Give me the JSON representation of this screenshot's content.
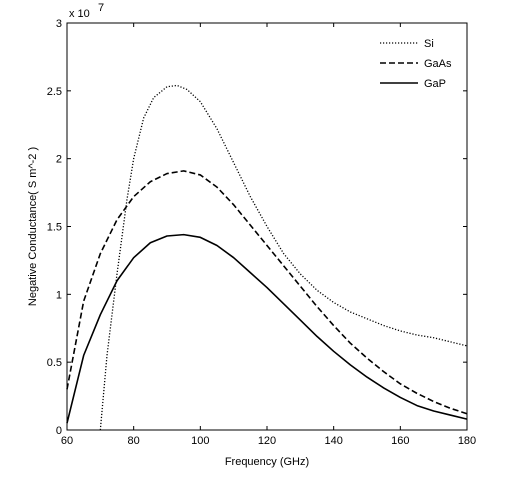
{
  "chart_data": {
    "type": "line",
    "title": "",
    "xlabel": "Frequency (GHz)",
    "ylabel": "Negative Conductance( S m^-2 )",
    "y_multiplier_label": "x 10",
    "y_multiplier_exponent": "7",
    "xlim": [
      60,
      180
    ],
    "ylim": [
      0,
      3
    ],
    "xticks": [
      "60",
      "80",
      "100",
      "120",
      "140",
      "160",
      "180"
    ],
    "yticks": [
      "0",
      "0.5",
      "1",
      "1.5",
      "2",
      "2.5",
      "3"
    ],
    "grid": false,
    "legend_position": "top-right",
    "x": [
      60,
      65,
      70,
      75,
      80,
      85,
      90,
      95,
      100,
      105,
      110,
      115,
      120,
      125,
      130,
      135,
      140,
      145,
      150,
      155,
      160,
      165,
      170,
      175,
      180
    ],
    "series": [
      {
        "name": "Si",
        "style": "dotted",
        "color": "#000000",
        "x": [
          70,
          72,
          75,
          78,
          80,
          83,
          86,
          90,
          93,
          96,
          100,
          105,
          110,
          115,
          120,
          125,
          130,
          135,
          140,
          145,
          150,
          155,
          160,
          165,
          170,
          175,
          180
        ],
        "values": [
          0.0,
          0.55,
          1.15,
          1.7,
          2.0,
          2.3,
          2.45,
          2.53,
          2.54,
          2.51,
          2.42,
          2.22,
          1.97,
          1.72,
          1.5,
          1.3,
          1.15,
          1.03,
          0.94,
          0.87,
          0.82,
          0.77,
          0.73,
          0.7,
          0.68,
          0.65,
          0.62
        ]
      },
      {
        "name": "GaAs",
        "style": "dashed",
        "color": "#000000",
        "values": [
          0.3,
          0.95,
          1.3,
          1.55,
          1.72,
          1.83,
          1.89,
          1.91,
          1.88,
          1.79,
          1.66,
          1.51,
          1.36,
          1.21,
          1.06,
          0.91,
          0.77,
          0.64,
          0.53,
          0.43,
          0.34,
          0.27,
          0.21,
          0.16,
          0.12
        ]
      },
      {
        "name": "GaP",
        "style": "solid",
        "color": "#000000",
        "values": [
          0.05,
          0.55,
          0.85,
          1.1,
          1.27,
          1.38,
          1.43,
          1.44,
          1.42,
          1.36,
          1.27,
          1.16,
          1.05,
          0.93,
          0.81,
          0.69,
          0.58,
          0.48,
          0.39,
          0.31,
          0.24,
          0.18,
          0.14,
          0.11,
          0.08
        ]
      }
    ]
  }
}
